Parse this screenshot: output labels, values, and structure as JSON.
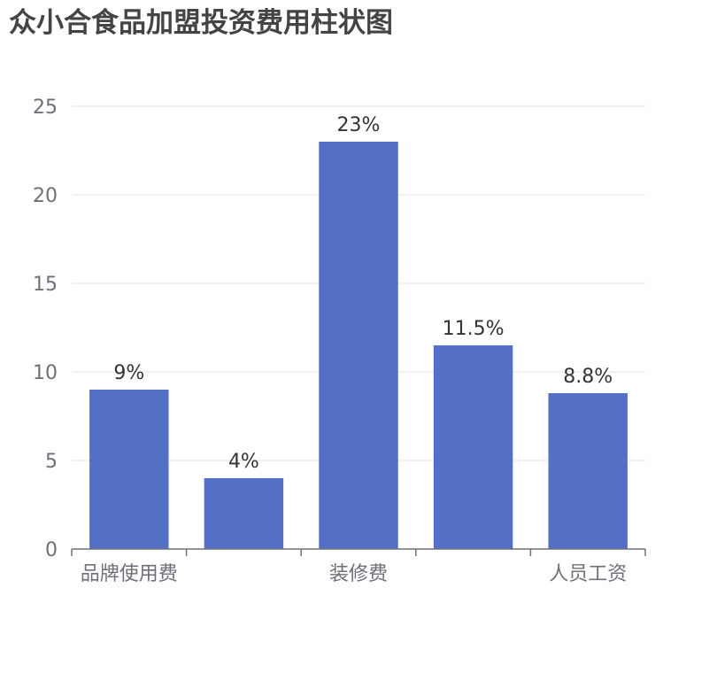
{
  "chart_data": {
    "type": "bar",
    "title": "众小合食品加盟投资费用柱状图",
    "categories": [
      "品牌使用费",
      "",
      "装修费",
      "",
      "人员工资"
    ],
    "values": [
      9,
      4,
      23,
      11.5,
      8.8
    ],
    "data_labels": [
      "9%",
      "4%",
      "23%",
      "11.5%",
      "8.8%"
    ],
    "xlabel": "",
    "ylabel": "",
    "ylim": [
      0,
      25
    ],
    "yticks": [
      "0",
      "5",
      "10",
      "15",
      "20",
      "25"
    ],
    "grid": true,
    "bar_color": "#5470c6"
  }
}
